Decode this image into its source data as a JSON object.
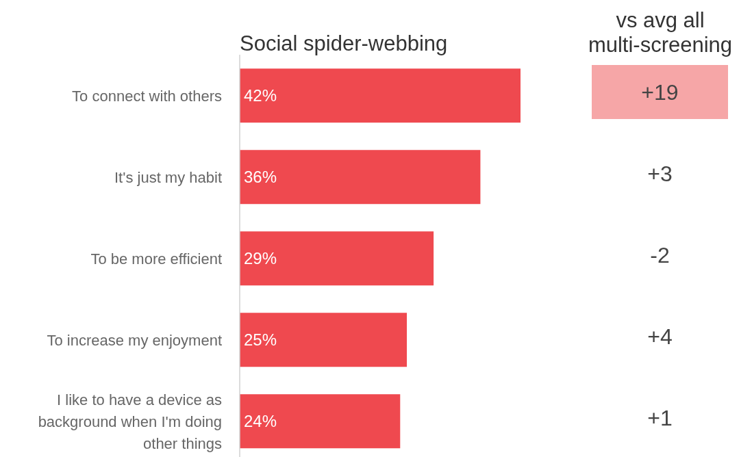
{
  "chart_data": [
    {
      "type": "bar",
      "orientation": "horizontal",
      "title": "Social spider-webbing",
      "categories": [
        "To connect with others",
        "It's just my habit",
        "To be more efficient",
        "To increase my enjoyment",
        "I like to have a device as background when I'm doing other things"
      ],
      "values": [
        42,
        36,
        29,
        25,
        24
      ],
      "value_labels": [
        "42%",
        "36%",
        "29%",
        "25%",
        "24%"
      ],
      "color": "#ef494f",
      "grid": false,
      "legend": false
    },
    {
      "type": "other",
      "title": "vs avg all multi-screening",
      "annotations": [
        "+19",
        "+3",
        "-2",
        "+4",
        "+1"
      ]
    }
  ]
}
